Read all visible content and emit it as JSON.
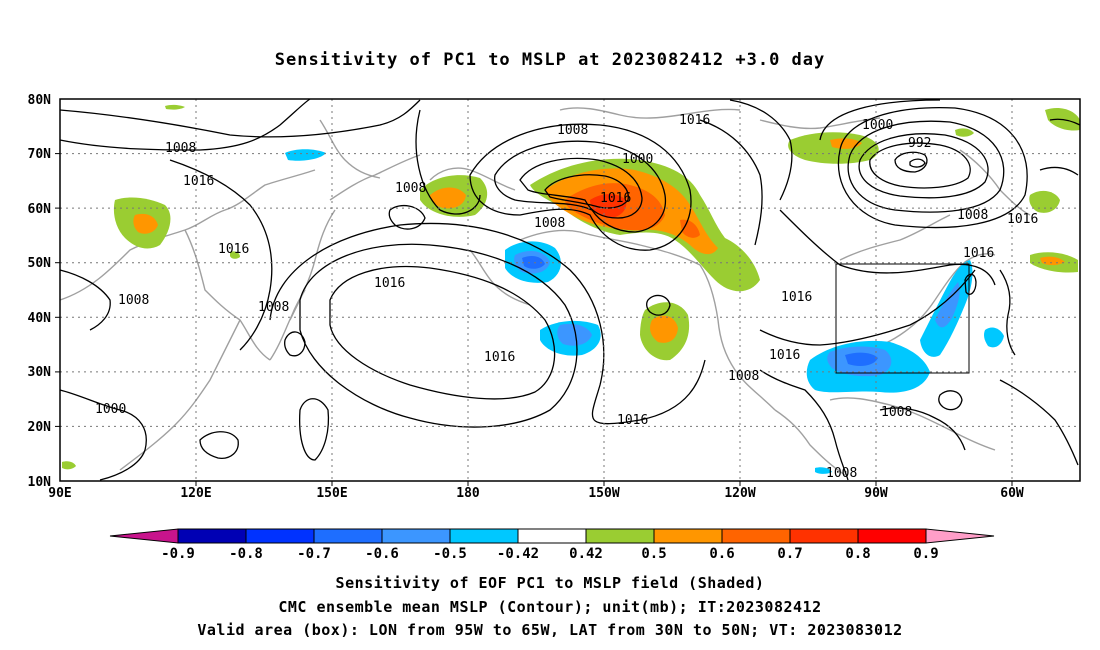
{
  "title": "Sensitivity of PC1 to MSLP at 2023082412 +3.0 day",
  "map": {
    "lon_labels": [
      "90E",
      "120E",
      "150E",
      "180",
      "150W",
      "120W",
      "90W",
      "60W"
    ],
    "lat_labels": [
      "80N",
      "70N",
      "60N",
      "50N",
      "40N",
      "30N",
      "20N",
      "10N"
    ],
    "contour_labels": [
      "1008",
      "1008",
      "1016",
      "1016",
      "1008",
      "1008",
      "1000",
      "1008",
      "1000",
      "1016",
      "1016",
      "1008",
      "1016",
      "1016",
      "1016",
      "1008",
      "1016",
      "1000",
      "992",
      "1008",
      "1016",
      "1016",
      "1008",
      "1008"
    ],
    "valid_box": {
      "lon_from": "95W",
      "lon_to": "65W",
      "lat_from": "30N",
      "lat_to": "50N"
    }
  },
  "colorbar": {
    "labels": [
      "-0.9",
      "-0.8",
      "-0.7",
      "-0.6",
      "-0.5",
      "-0.42",
      "0.42",
      "0.5",
      "0.6",
      "0.7",
      "0.8",
      "0.9"
    ],
    "colors": [
      "#0000b4",
      "#0032ff",
      "#1e6eff",
      "#3c96ff",
      "#00c8ff",
      "#ffffff",
      "#9acd32",
      "#ff9600",
      "#ff6400",
      "#ff3200",
      "#ff0000"
    ],
    "low_arrow_color": "#c8148c",
    "high_arrow_color": "#ff9ec8"
  },
  "captions": [
    "Sensitivity of EOF PC1 to MSLP field (Shaded)",
    "CMC ensemble mean MSLP (Contour); unit(mb); IT:2023082412",
    "Valid area (box): LON from 95W to 65W, LAT from 30N to 50N; VT: 2023083012"
  ]
}
